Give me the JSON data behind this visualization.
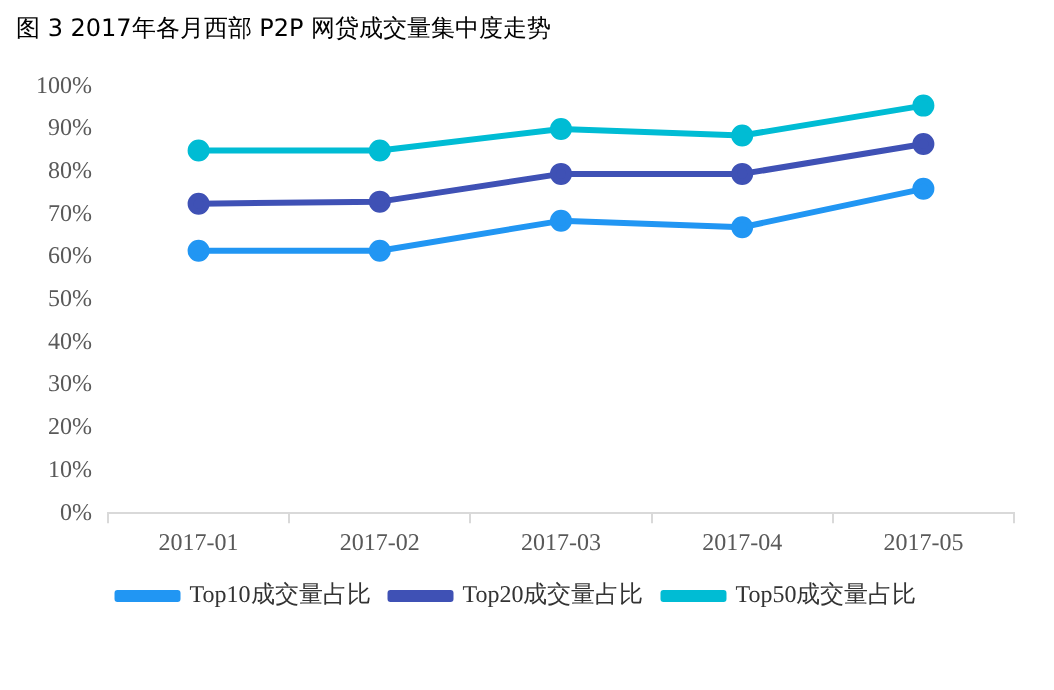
{
  "chart_data": {
    "type": "line",
    "title": "图 3 2017年各月西部 P2P 网贷成交量集中度走势",
    "categories": [
      "2017-01",
      "2017-02",
      "2017-03",
      "2017-04",
      "2017-05"
    ],
    "series": [
      {
        "name": "Top10成交量占比",
        "color": "#2196f3",
        "values": [
          61.5,
          61.5,
          68.5,
          67,
          76
        ]
      },
      {
        "name": "Top20成交量占比",
        "color": "#3f51b5",
        "values": [
          72.5,
          73,
          79.5,
          79.5,
          86.5
        ]
      },
      {
        "name": "Top50成交量占比",
        "color": "#00bcd4",
        "values": [
          85,
          85,
          90,
          88.5,
          95.5
        ]
      }
    ],
    "ylim": [
      0,
      100
    ],
    "yticks": [
      {
        "value": 0,
        "label": "0%"
      },
      {
        "value": 10,
        "label": "10%"
      },
      {
        "value": 20,
        "label": "20%"
      },
      {
        "value": 30,
        "label": "30%"
      },
      {
        "value": 40,
        "label": "40%"
      },
      {
        "value": 50,
        "label": "50%"
      },
      {
        "value": 60,
        "label": "60%"
      },
      {
        "value": 70,
        "label": "70%"
      },
      {
        "value": 80,
        "label": "80%"
      },
      {
        "value": 90,
        "label": "90%"
      },
      {
        "value": 100,
        "label": "100%"
      }
    ],
    "grid": false,
    "legend": "bottom",
    "marker": "circle",
    "line_style": "solid"
  }
}
